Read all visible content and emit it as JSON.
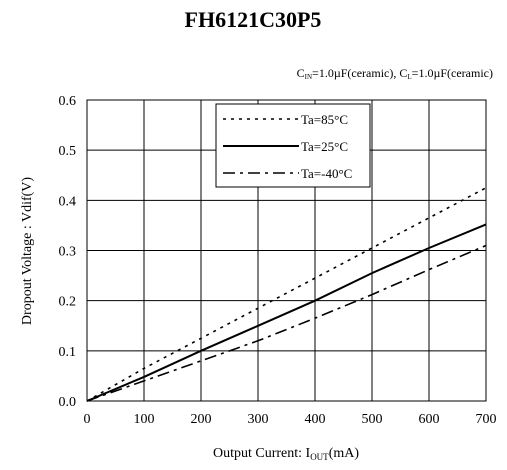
{
  "chart_data": {
    "type": "line",
    "title": "FH6121C30P5",
    "condition": {
      "cin_sym": "C",
      "cin_sub": "IN",
      "cin_val": "=1.0µF(ceramic), ",
      "cl_sym": "C",
      "cl_sub": "L",
      "cl_val": "=1.0µF(ceramic)"
    },
    "xlabel": {
      "pre": "Output Current: I",
      "sub": "OUT",
      "post": "(mA)"
    },
    "ylabel": "Dropout Voltage : Vdif(V)",
    "xlim": [
      0,
      700
    ],
    "ylim": [
      0,
      0.6
    ],
    "x_ticks": [
      "0",
      "100",
      "200",
      "300",
      "400",
      "500",
      "600",
      "700"
    ],
    "y_ticks": [
      "0.0",
      "0.1",
      "0.2",
      "0.3",
      "0.4",
      "0.5",
      "0.6"
    ],
    "grid": true,
    "legend_position": "top-center",
    "series": [
      {
        "name": "Ta=85°C",
        "style": "dotted",
        "points": [
          [
            0,
            0
          ],
          [
            100,
            0.065
          ],
          [
            200,
            0.125
          ],
          [
            300,
            0.185
          ],
          [
            400,
            0.245
          ],
          [
            500,
            0.305
          ],
          [
            600,
            0.365
          ],
          [
            700,
            0.425
          ]
        ]
      },
      {
        "name": "Ta=25°C",
        "style": "solid",
        "points": [
          [
            0,
            0
          ],
          [
            100,
            0.048
          ],
          [
            200,
            0.1
          ],
          [
            300,
            0.15
          ],
          [
            400,
            0.2
          ],
          [
            500,
            0.255
          ],
          [
            600,
            0.305
          ],
          [
            700,
            0.352
          ]
        ]
      },
      {
        "name": "Ta=-40°C",
        "style": "dashdot",
        "points": [
          [
            0,
            0
          ],
          [
            100,
            0.04
          ],
          [
            200,
            0.08
          ],
          [
            300,
            0.12
          ],
          [
            400,
            0.165
          ],
          [
            500,
            0.212
          ],
          [
            600,
            0.262
          ],
          [
            700,
            0.31
          ]
        ]
      }
    ]
  }
}
